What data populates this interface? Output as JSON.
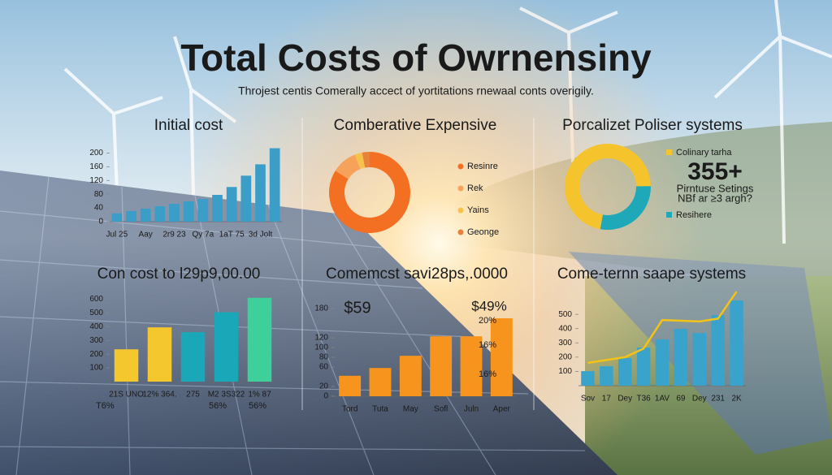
{
  "header": {
    "title": "Total Costs of Owrnensiny",
    "subtitle": "Throjest centis Comerally accect of yortitations rnewaal conts overigily."
  },
  "chart_data": [
    {
      "type": "bar",
      "title": "Initial cost",
      "color": "#3a9ec9",
      "categories": [
        "Jul 25",
        null,
        "Aay",
        null,
        "2r9 23",
        null,
        "Qy 7a",
        null,
        "1aT 75",
        null,
        "3d Jolt",
        null
      ],
      "values": [
        24,
        31,
        38,
        45,
        52,
        59,
        66,
        78,
        101,
        134,
        167,
        214
      ],
      "ylim": [
        0,
        220
      ],
      "yticks": [
        0,
        40,
        80,
        120,
        160,
        200
      ],
      "grid": false
    },
    {
      "type": "pie",
      "donut": true,
      "title": "Comberative Expensive",
      "labels": [
        "Resinre",
        "Rek",
        "Yains",
        "Geonge"
      ],
      "values": [
        84,
        10,
        3,
        3
      ],
      "colors": [
        "#f36f21",
        "#f7a25a",
        "#f5c24a",
        "#e8823a"
      ]
    },
    {
      "type": "pie",
      "donut": true,
      "title": "Porcalizet Poliser systems",
      "labels": [
        "Colinary tarha",
        "Resihere"
      ],
      "values": [
        72,
        28
      ],
      "colors": [
        "#f5c32c",
        "#1fa9b8"
      ],
      "annotations": [
        "355+",
        "Pirntuse Setings",
        "NBf ar ≥3 argh?"
      ]
    },
    {
      "type": "bar",
      "title": "Con cost to l29p9,00.00",
      "categories": [
        "21S UNO",
        "12% 364.",
        "275",
        "M2 3S322",
        "1% 87"
      ],
      "values": [
        235,
        395,
        360,
        505,
        610
      ],
      "colors": [
        "#f5c72e",
        "#f5c72e",
        "#1aa8b8",
        "#1aa8b8",
        "#3fcf9a"
      ],
      "ylim": [
        0,
        650
      ],
      "yticks": [
        100,
        200,
        300,
        400,
        500,
        600
      ],
      "grid": false,
      "annotations": [
        "T6%",
        "56%",
        "56%"
      ]
    },
    {
      "type": "bar",
      "title": "Comemcst savi28ps,.0000",
      "color": "#f7941d",
      "categories": [
        "Tord",
        "Tuta",
        "May",
        "Sofl",
        "Juln",
        "Aper"
      ],
      "values": [
        42,
        58,
        83,
        123,
        123,
        160
      ],
      "ylim": [
        0,
        200
      ],
      "yticks": [
        0,
        20,
        60,
        80,
        100,
        120,
        180
      ],
      "grid": false,
      "annotations": [
        "$59",
        "$49%",
        "20%",
        "16%",
        "16%"
      ]
    },
    {
      "type": "bar",
      "title": "Come-ternn saape systems",
      "color": "#3aa3cc",
      "categories": [
        "Sov",
        "17",
        "Dey",
        "T36",
        "1AV",
        "69",
        "Dey",
        "231",
        "2K"
      ],
      "values": [
        102,
        136,
        193,
        267,
        324,
        398,
        369,
        494,
        597
      ],
      "line": {
        "color": "#f3c316",
        "values": [
          160,
          180,
          200,
          260,
          460,
          455,
          450,
          470,
          660
        ]
      },
      "ylim": [
        0,
        700
      ],
      "yticks": [
        100,
        200,
        300,
        400,
        500
      ],
      "grid": false
    }
  ]
}
